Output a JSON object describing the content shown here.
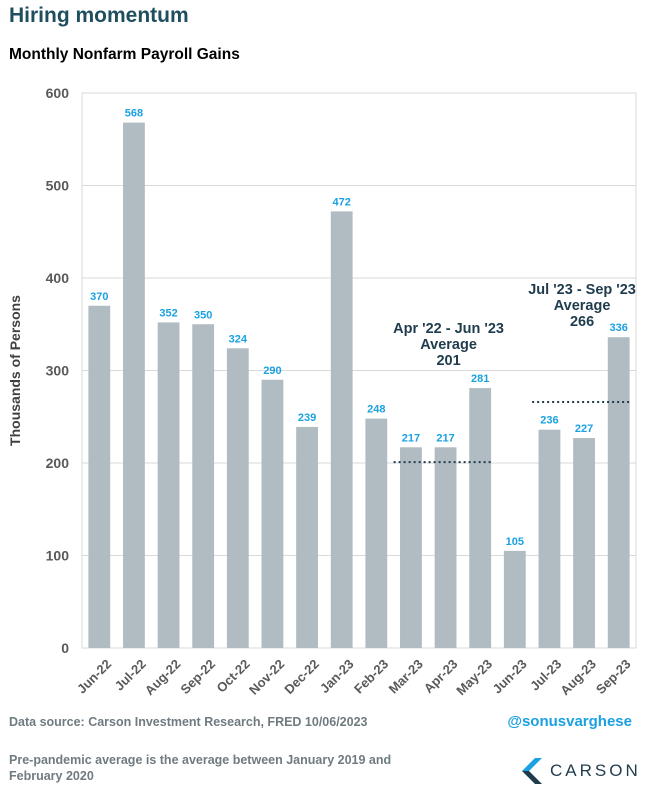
{
  "header": {
    "title": "Hiring momentum",
    "subtitle": "Monthly Nonfarm Payroll Gains"
  },
  "chart_data": {
    "type": "bar",
    "categories": [
      "Jun-22",
      "Jul-22",
      "Aug-22",
      "Sep-22",
      "Oct-22",
      "Nov-22",
      "Dec-22",
      "Jan-23",
      "Feb-23",
      "Mar-23",
      "Apr-23",
      "May-23",
      "Jun-23",
      "Jul-23",
      "Aug-23",
      "Sep-23"
    ],
    "values": [
      370,
      568,
      352,
      350,
      324,
      290,
      239,
      472,
      248,
      217,
      217,
      281,
      105,
      236,
      227,
      336
    ],
    "ylabel": "Thousands of Persons",
    "ylim": [
      0,
      600
    ],
    "yticks": [
      0,
      100,
      200,
      300,
      400,
      500,
      600
    ],
    "grid": true,
    "bar_color": "#b1bcc2",
    "label_color": "#1ba1e2",
    "annotations": [
      {
        "lines": [
          "Apr '22 - Jun '23",
          "Average",
          "201"
        ],
        "value": 201,
        "from": "Mar-23",
        "to": "May-23"
      },
      {
        "lines": [
          "Jul '23 - Sep '23",
          "Average",
          "266"
        ],
        "value": 266,
        "from": "Jul-23",
        "to": "Sep-23"
      }
    ]
  },
  "footer": {
    "source": "Data source: Carson Investment Research, FRED    10/06/2023",
    "note": "Pre-pandemic average is the average between January 2019 and February 2020",
    "handle": "@sonusvarghese",
    "logo_text": "CARSON"
  },
  "colors": {
    "title": "#1f4e5f",
    "annotation": "#1f3c4d",
    "grid": "#d9d9d9",
    "logo_dark": "#1f3c4d",
    "logo_light": "#1ba1e2"
  }
}
